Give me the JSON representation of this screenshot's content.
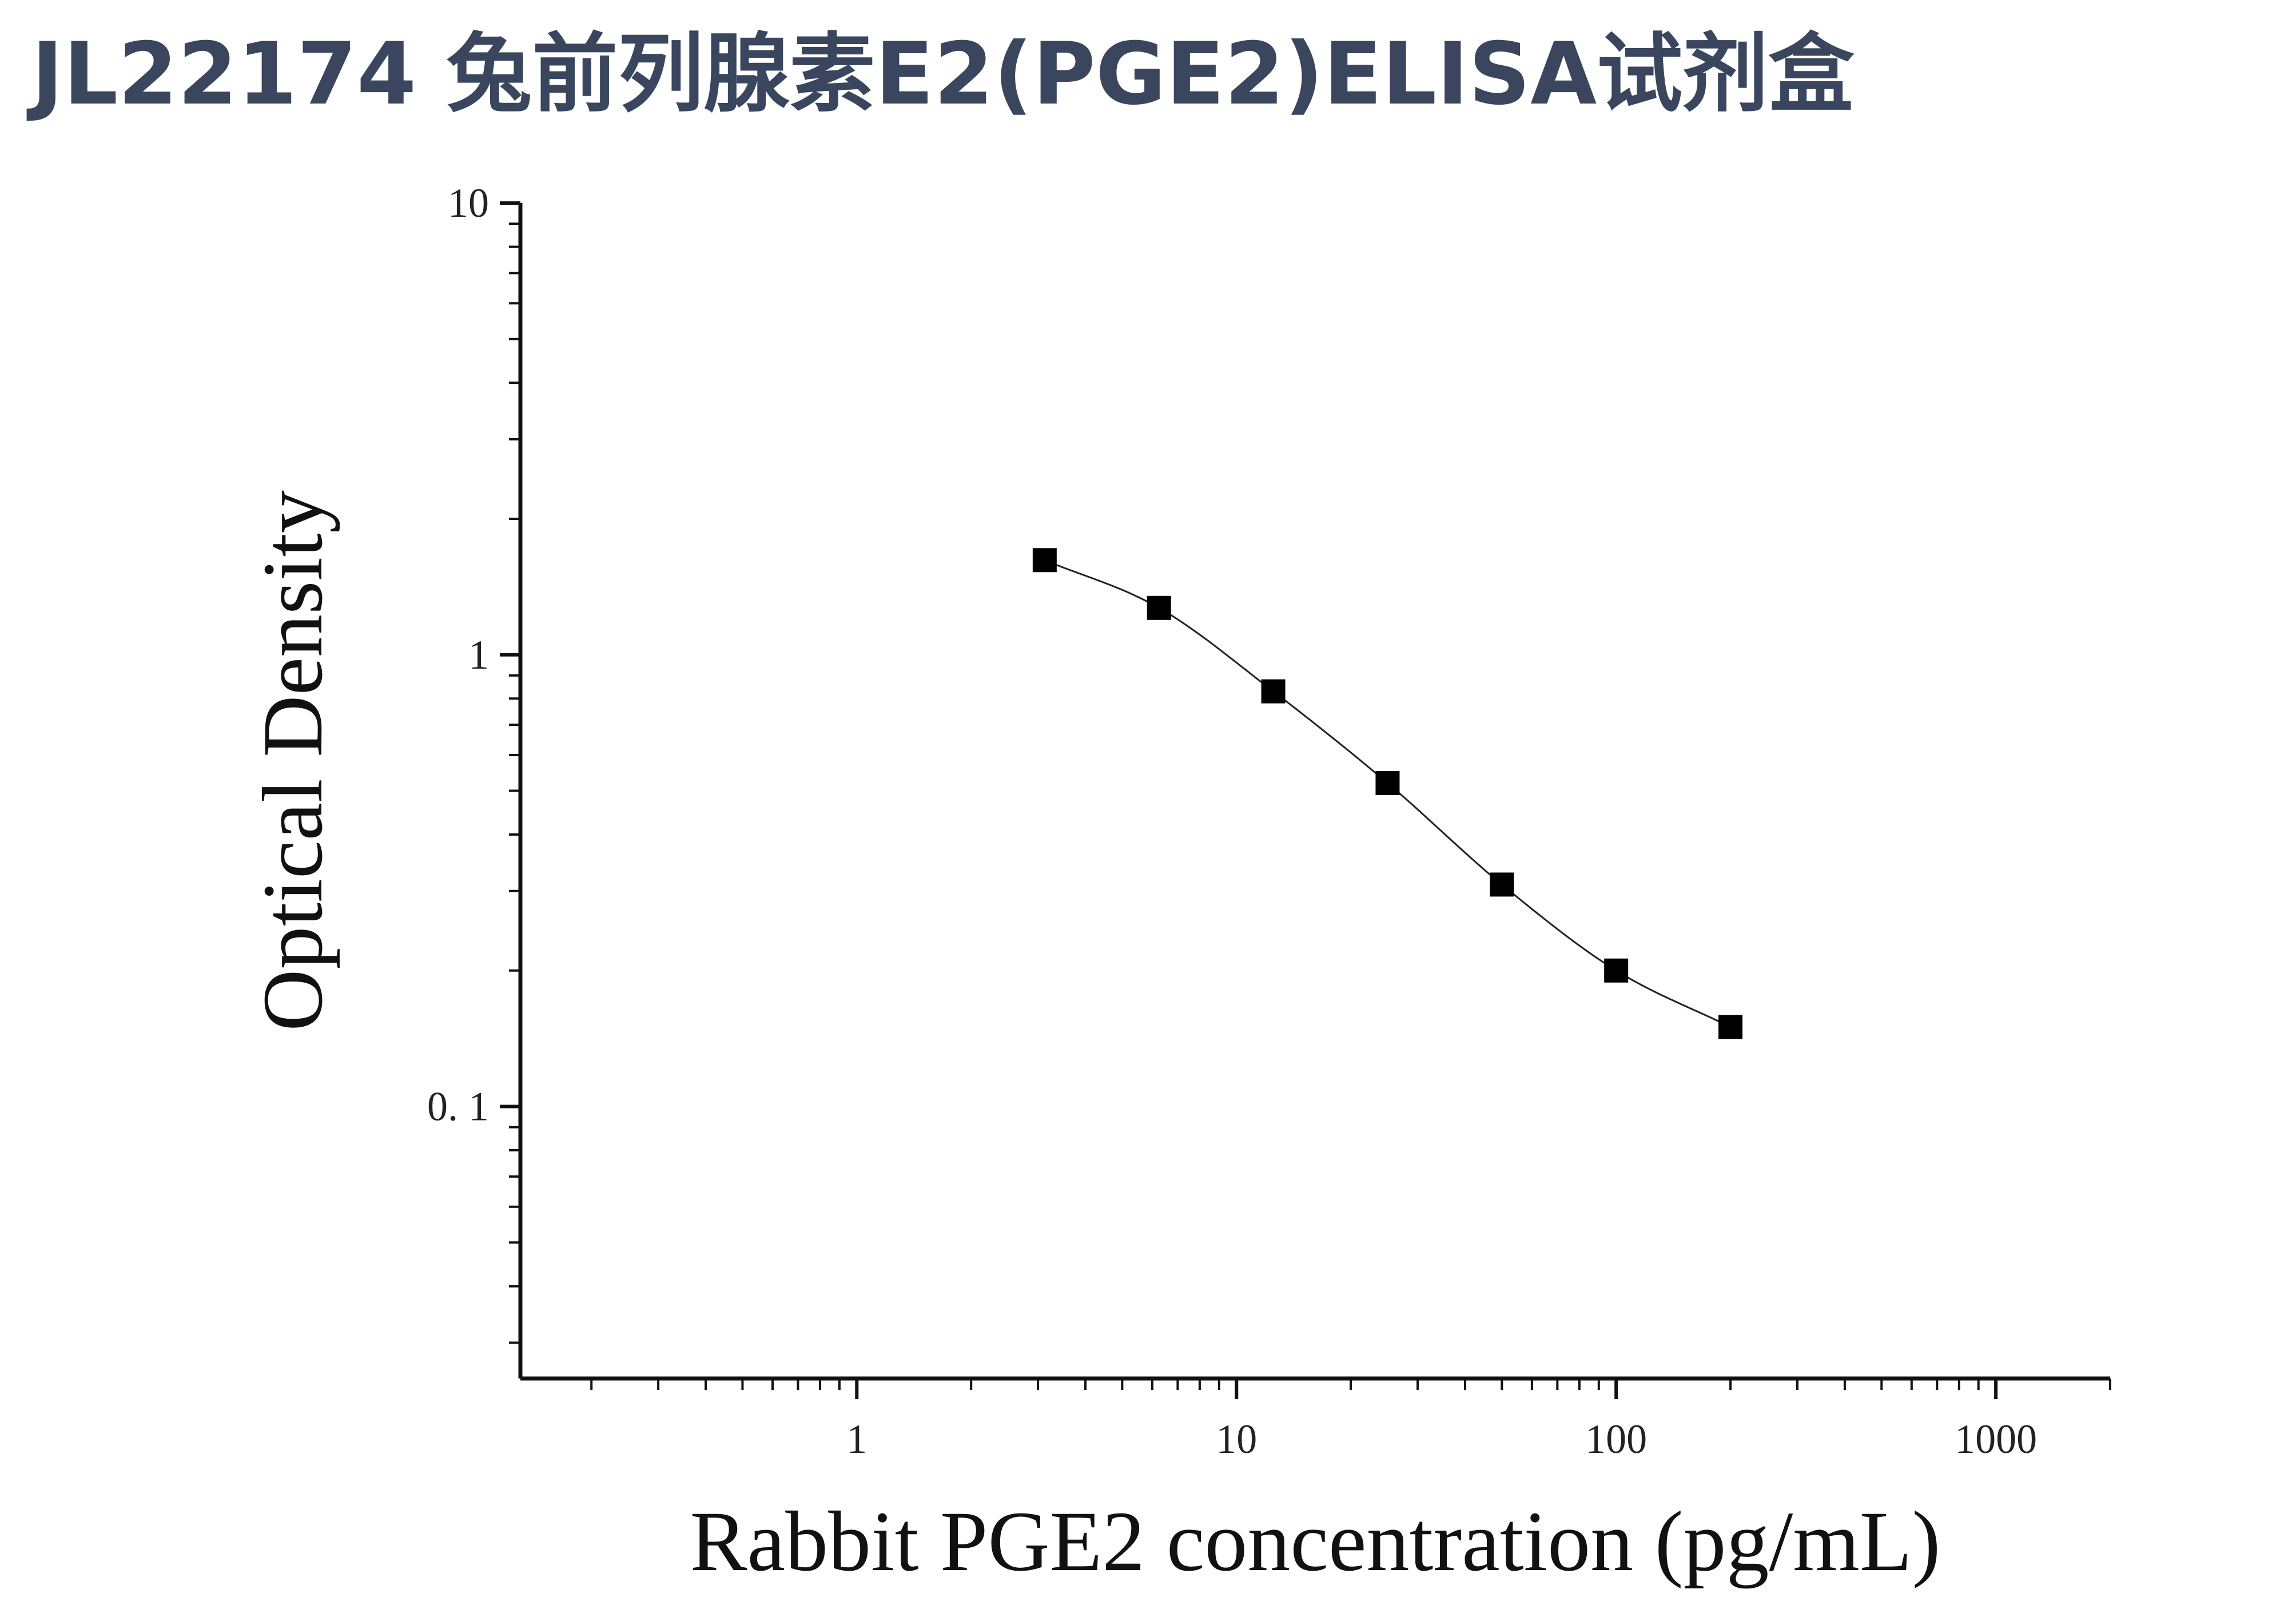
{
  "title": "JL22174 兔前列腺素E2(PGE2)ELISA试剂盒",
  "chart_data": {
    "type": "scatter",
    "xlabel": "Rabbit PGE2 concentration (pg/mL)",
    "ylabel": "Optical Density",
    "xscale": "log",
    "yscale": "log",
    "xlim": [
      0.13,
      2000
    ],
    "ylim": [
      0.025,
      10
    ],
    "x_ticks": [
      "1",
      "10",
      "100",
      "1000"
    ],
    "y_ticks": [
      "10",
      "1",
      "0. 1"
    ],
    "grid": false,
    "legend": "none",
    "fitted_curve": true,
    "marker": "square",
    "color": "#000000",
    "x": [
      3.125,
      6.25,
      12.5,
      25,
      50,
      100,
      200
    ],
    "y": [
      1.62,
      1.27,
      0.83,
      0.52,
      0.31,
      0.2,
      0.15
    ]
  }
}
